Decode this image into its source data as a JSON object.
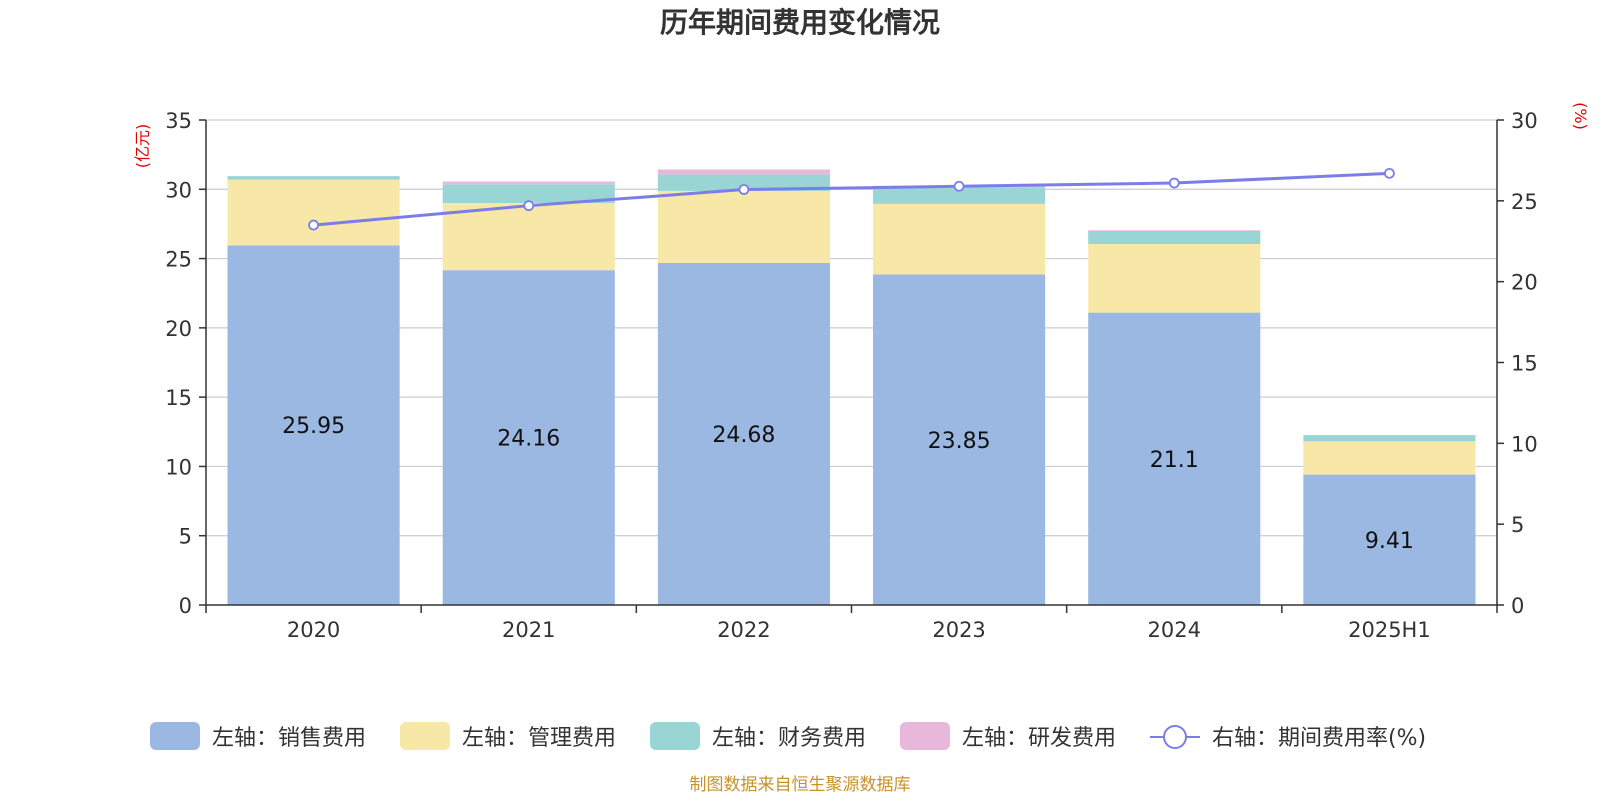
{
  "chart_data": {
    "type": "bar",
    "title": "历年期间费用变化情况",
    "categories": [
      "2020",
      "2021",
      "2022",
      "2023",
      "2024",
      "2025H1"
    ],
    "left_axis": {
      "unit": "(亿元)",
      "ylim": [
        0,
        35
      ],
      "ticks": [
        0,
        5,
        10,
        15,
        20,
        25,
        30,
        35
      ]
    },
    "right_axis": {
      "unit": "(%)",
      "ylim": [
        0,
        30
      ],
      "ticks": [
        0,
        5,
        10,
        15,
        20,
        25,
        30
      ]
    },
    "grid": true,
    "legend_position": "bottom",
    "series": [
      {
        "name": "左轴：销售费用",
        "type": "bar",
        "stack": true,
        "axis": "left",
        "color": "#9bb8e3",
        "values": [
          25.95,
          24.16,
          24.68,
          23.85,
          21.1,
          9.41
        ],
        "labels": [
          "25.95",
          "24.16",
          "24.68",
          "23.85",
          "21.1",
          "9.41"
        ]
      },
      {
        "name": "左轴：管理费用",
        "type": "bar",
        "stack": true,
        "axis": "left",
        "color": "#f8e8a8",
        "values": [
          4.75,
          4.85,
          5.2,
          5.1,
          4.95,
          2.4
        ]
      },
      {
        "name": "左轴：财务费用",
        "type": "bar",
        "stack": true,
        "axis": "left",
        "color": "#99d5d5",
        "values": [
          0.25,
          1.35,
          1.2,
          1.2,
          0.95,
          0.45
        ]
      },
      {
        "name": "左轴：研发费用",
        "type": "bar",
        "stack": true,
        "axis": "left",
        "color": "#e8b8da",
        "values": [
          0.0,
          0.2,
          0.35,
          0.1,
          0.05,
          0.0
        ]
      },
      {
        "name": "右轴：期间费用率(%)",
        "type": "line",
        "axis": "right",
        "color": "#7b7ee8",
        "values": [
          23.5,
          24.7,
          25.7,
          25.9,
          26.1,
          26.7
        ]
      }
    ]
  },
  "source": "制图数据来自恒生聚源数据库"
}
